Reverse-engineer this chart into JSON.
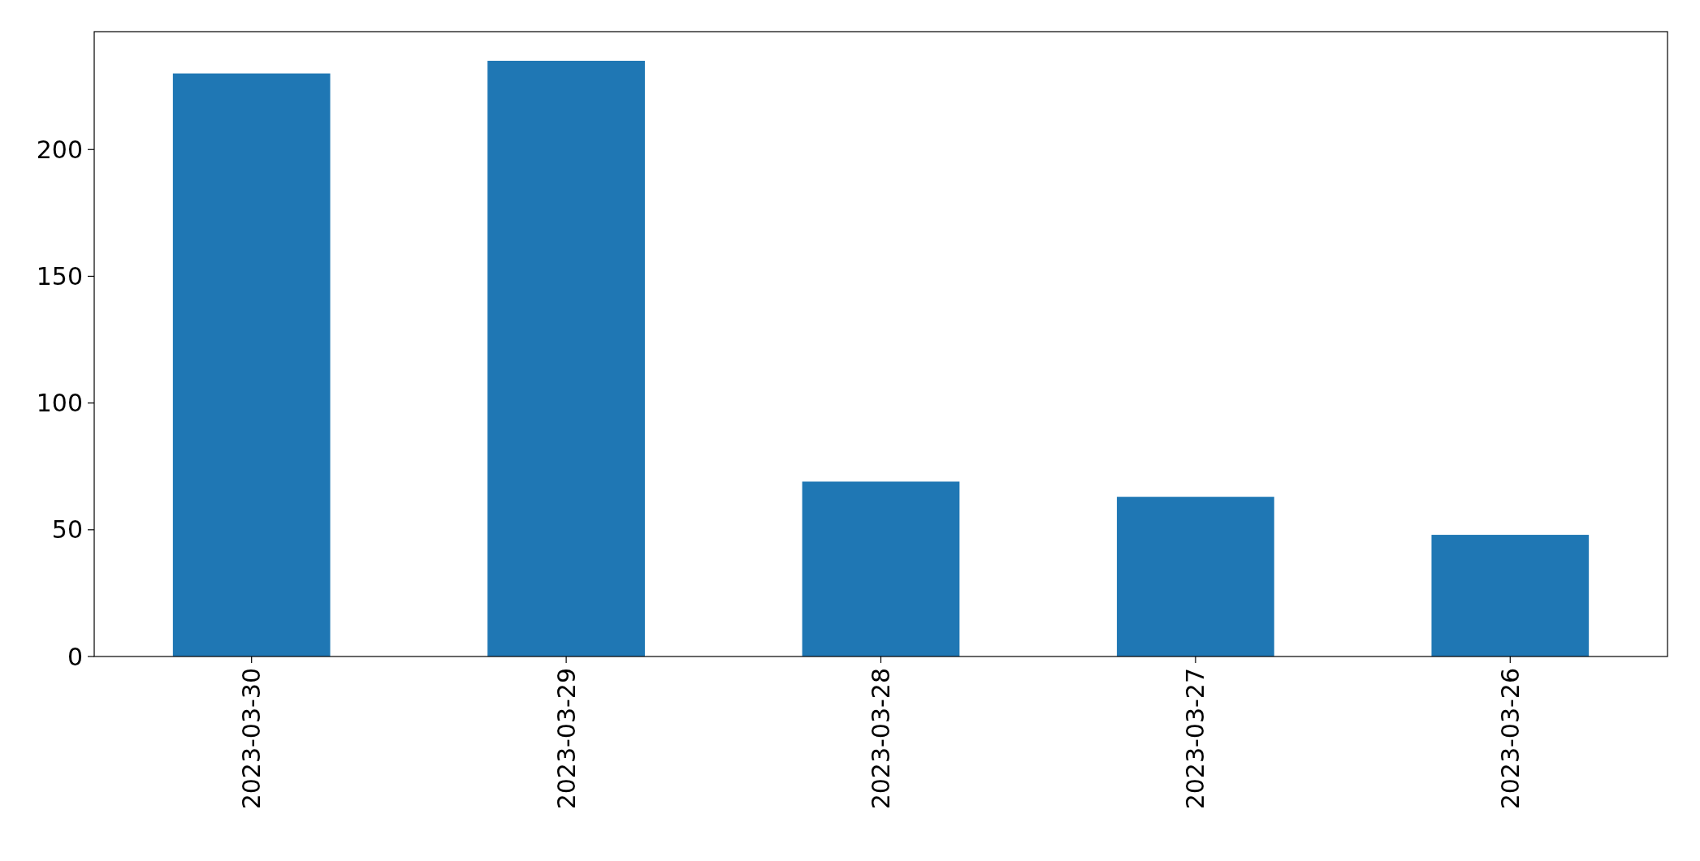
{
  "chart_data": {
    "type": "bar",
    "categories": [
      "2023-03-30",
      "2023-03-29",
      "2023-03-28",
      "2023-03-27",
      "2023-03-26"
    ],
    "values": [
      230,
      235,
      69,
      63,
      48
    ],
    "color": "#1f77b4",
    "ylim": [
      0,
      246.5
    ],
    "yticks": [
      0,
      50,
      100,
      150,
      200
    ],
    "grid": false
  }
}
